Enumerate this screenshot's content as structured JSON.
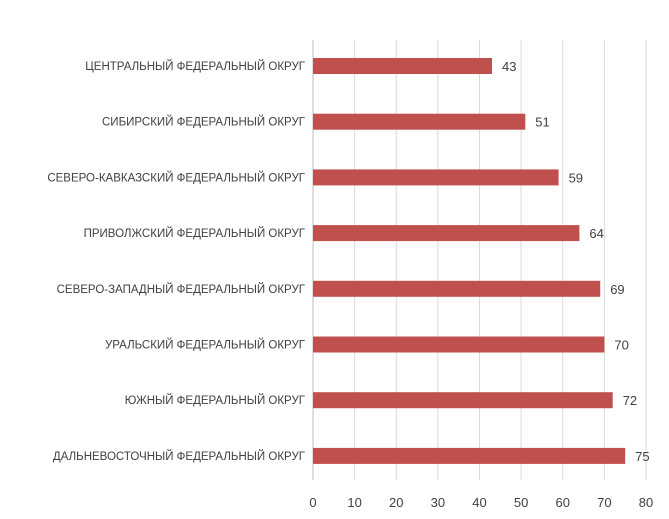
{
  "chart_data": {
    "type": "bar",
    "orientation": "horizontal",
    "title": "",
    "xlabel": "",
    "ylabel": "",
    "categories": [
      "ЦЕНТРАЛЬНЫЙ ФЕДЕРАЛЬНЫЙ ОКРУГ",
      "СИБИРСКИЙ ФЕДЕРАЛЬНЫЙ ОКРУГ",
      "СЕВЕРО-КАВКАЗСКИЙ ФЕДЕРАЛЬНЫЙ ОКРУГ",
      "ПРИВОЛЖСКИЙ ФЕДЕРАЛЬНЫЙ ОКРУГ",
      "СЕВЕРО-ЗАПАДНЫЙ ФЕДЕРАЛЬНЫЙ ОКРУГ",
      "УРАЛЬСКИЙ ФЕДЕРАЛЬНЫЙ ОКРУГ",
      "ЮЖНЫЙ ФЕДЕРАЛЬНЫЙ ОКРУГ",
      "ДАЛЬНЕВОСТОЧНЫЙ ФЕДЕРАЛЬНЫЙ ОКРУГ"
    ],
    "values": [
      43,
      51,
      59,
      64,
      69,
      70,
      72,
      75
    ],
    "xlim": [
      0,
      80
    ],
    "xticks": [
      0,
      10,
      20,
      30,
      40,
      50,
      60,
      70,
      80
    ],
    "grid": "vertical",
    "legend": "none",
    "data_labels": true,
    "bar_color": "#c0504d",
    "grid_color": "#d9d9d9",
    "axis_color": "#bfbfbf",
    "text_color": "#404040"
  }
}
